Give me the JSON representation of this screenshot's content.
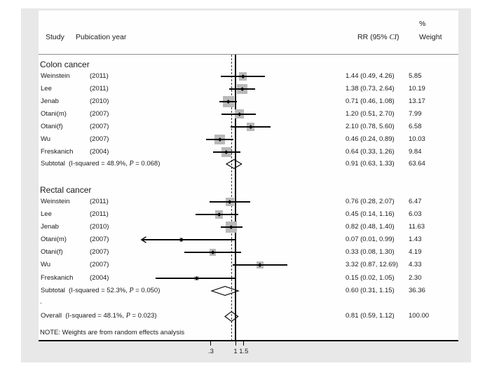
{
  "chart_data": {
    "type": "forest",
    "x_axis": {
      "scale": "log",
      "ticks": [
        0.3,
        1,
        1.5
      ],
      "tick_labels": [
        ".3",
        "1",
        "1.5"
      ],
      "null_line": 1,
      "overall_line": 0.81
    },
    "columns": {
      "study_header": "Study",
      "year_header": "Pubication year",
      "rr_header": {
        "pre": "RR (95% ",
        "italic": "CI",
        "post": ")"
      },
      "weight_pct_header": "%",
      "weight_header": "Weight"
    },
    "sections": [
      {
        "label": "Colon cancer",
        "rows": [
          {
            "study": "Weinstein",
            "year": "(2011)",
            "rr": 1.44,
            "lo": 0.49,
            "hi": 4.26,
            "rr_text": "1.44 (0.49, 4.26)",
            "weight": "5.85"
          },
          {
            "study": "Lee",
            "year": "(2011)",
            "rr": 1.38,
            "lo": 0.73,
            "hi": 2.64,
            "rr_text": "1.38 (0.73, 2.64)",
            "weight": "10.19"
          },
          {
            "study": "Jenab",
            "year": "(2010)",
            "rr": 0.71,
            "lo": 0.46,
            "hi": 1.08,
            "rr_text": "0.71 (0.46, 1.08)",
            "weight": "13.17"
          },
          {
            "study": "Otani(m)",
            "year": "(2007)",
            "rr": 1.2,
            "lo": 0.51,
            "hi": 2.7,
            "rr_text": "1.20 (0.51, 2.70)",
            "weight": "7.99"
          },
          {
            "study": "Otani(f)",
            "year": "(2007)",
            "rr": 2.1,
            "lo": 0.78,
            "hi": 5.6,
            "rr_text": "2.10 (0.78, 5.60)",
            "weight": "6.58"
          },
          {
            "study": "Wu",
            "year": "(2007)",
            "rr": 0.46,
            "lo": 0.24,
            "hi": 0.89,
            "rr_text": "0.46 (0.24, 0.89)",
            "weight": "10.03"
          },
          {
            "study": "Freskanich",
            "year": "(2004)",
            "rr": 0.64,
            "lo": 0.33,
            "hi": 1.26,
            "rr_text": "0.64 (0.33, 1.26)",
            "weight": "9.84"
          }
        ],
        "subtotal": {
          "label_pre": "Subtotal  (I-squared = 48.9%, ",
          "p": "P",
          "label_post": " = 0.068)",
          "rr": 0.91,
          "lo": 0.63,
          "hi": 1.33,
          "rr_text": "0.91 (0.63, 1.33)",
          "weight": "63.64"
        }
      },
      {
        "label": "Rectal cancer",
        "rows": [
          {
            "study": "Weinstein",
            "year": "(2011)",
            "rr": 0.76,
            "lo": 0.28,
            "hi": 2.07,
            "rr_text": "0.76 (0.28, 2.07)",
            "weight": "6.47"
          },
          {
            "study": "Lee",
            "year": "(2011)",
            "rr": 0.45,
            "lo": 0.14,
            "hi": 1.16,
            "rr_text": "0.45 (0.14, 1.16)",
            "weight": "6.03"
          },
          {
            "study": "Jenab",
            "year": "(2010)",
            "rr": 0.82,
            "lo": 0.48,
            "hi": 1.4,
            "rr_text": "0.82 (0.48, 1.40)",
            "weight": "11.63"
          },
          {
            "study": "Otani(m)",
            "year": "(2007)",
            "rr": 0.07,
            "lo": 0.01,
            "hi": 0.99,
            "rr_text": "0.07 (0.01, 0.99)",
            "weight": "1.43",
            "arrow": "left"
          },
          {
            "study": "Otani(f)",
            "year": "(2007)",
            "rr": 0.33,
            "lo": 0.08,
            "hi": 1.3,
            "rr_text": "0.33 (0.08, 1.30)",
            "weight": "4.19"
          },
          {
            "study": "Wu",
            "year": "(2007)",
            "rr": 3.32,
            "lo": 0.87,
            "hi": 12.69,
            "rr_text": "3.32 (0.87, 12.69)",
            "weight": "4.33"
          },
          {
            "study": "Freskanich",
            "year": "(2004)",
            "rr": 0.15,
            "lo": 0.02,
            "hi": 1.05,
            "rr_text": "0.15 (0.02, 1.05)",
            "weight": "2.30"
          }
        ],
        "subtotal": {
          "label_pre": "Subtotal  (I-squared = 52.3%, ",
          "p": "P",
          "label_post": " = 0.050)",
          "rr": 0.6,
          "lo": 0.31,
          "hi": 1.15,
          "rr_text": "0.60 (0.31, 1.15)",
          "weight": "36.36"
        }
      }
    ],
    "dot_row": ".",
    "overall": {
      "label_pre": "Overall  (I-squared = 48.1%, ",
      "p": "P",
      "label_post": " = 0.023)",
      "rr": 0.81,
      "lo": 0.59,
      "hi": 1.12,
      "rr_text": "0.81 (0.59, 1.12)",
      "weight": "100.00"
    },
    "note": "NOTE: Weights are from random effects analysis",
    "colors": {
      "panel_bg": "#e8e8e8",
      "plot_bg": "#ffffff",
      "box_fill": "#b9b9b9",
      "line": "#000000",
      "text": "#1a1a1a"
    }
  }
}
